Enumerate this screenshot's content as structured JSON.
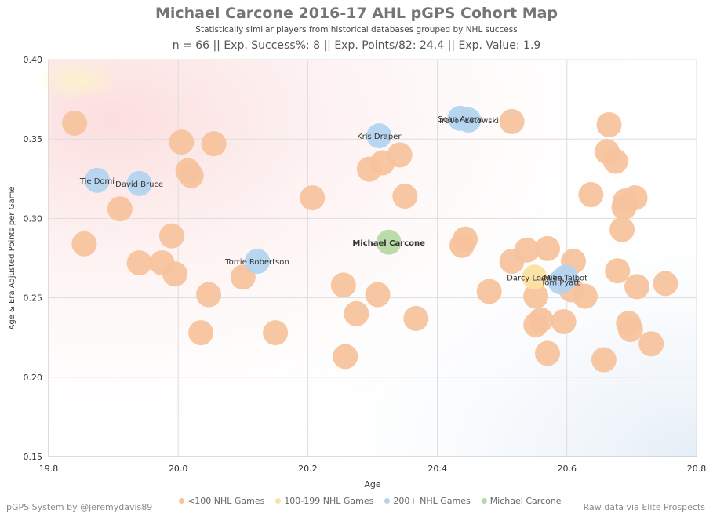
{
  "header": {
    "title": "Michael Carcone 2016-17 AHL pGPS Cohort Map",
    "subtitle": "Statistically similar players from historical databases grouped by NHL success",
    "stats_line": "n = 66 || Exp. Success%: 8 || Exp. Points/82: 24.4 || Exp. Value: 1.9"
  },
  "footer": {
    "left": "pGPS System by @jeremydavis89",
    "right": "Raw data via Elite Prospects"
  },
  "colors": {
    "lt100": "#F7C39E",
    "g100_199": "#FBE2A0",
    "g200": "#B3D4EE",
    "subject": "#B7D9A6",
    "grid": "#dddddd"
  },
  "legend": [
    {
      "label": "<100 NHL Games",
      "color": "#F7C39E"
    },
    {
      "label": "100-199 NHL Games",
      "color": "#FBE2A0"
    },
    {
      "label": "200+ NHL Games",
      "color": "#B3D4EE"
    },
    {
      "label": "Michael Carcone",
      "color": "#B7D9A6"
    }
  ],
  "chart_data": {
    "type": "scatter",
    "xlabel": "Age",
    "ylabel": "Age & Era Adjusted Points per Game",
    "xlim": [
      19.8,
      20.8
    ],
    "ylim": [
      0.15,
      0.4
    ],
    "xticks": [
      "19.8",
      "20.0",
      "20.2",
      "20.4",
      "20.6",
      "20.8"
    ],
    "yticks": [
      "0.15",
      "0.20",
      "0.25",
      "0.30",
      "0.35",
      "0.40"
    ],
    "grid": true,
    "series": [
      {
        "name": "<100 NHL Games",
        "points": [
          [
            19.84,
            0.36
          ],
          [
            19.855,
            0.284
          ],
          [
            19.91,
            0.306
          ],
          [
            19.94,
            0.272
          ],
          [
            19.975,
            0.272
          ],
          [
            19.99,
            0.289
          ],
          [
            19.995,
            0.265
          ],
          [
            20.005,
            0.348
          ],
          [
            20.015,
            0.33
          ],
          [
            20.02,
            0.327
          ],
          [
            20.035,
            0.228
          ],
          [
            20.047,
            0.252
          ],
          [
            20.055,
            0.347
          ],
          [
            20.1,
            0.263
          ],
          [
            20.15,
            0.228
          ],
          [
            20.207,
            0.313
          ],
          [
            20.255,
            0.258
          ],
          [
            20.258,
            0.213
          ],
          [
            20.275,
            0.24
          ],
          [
            20.295,
            0.331
          ],
          [
            20.308,
            0.252
          ],
          [
            20.315,
            0.335
          ],
          [
            20.342,
            0.34
          ],
          [
            20.35,
            0.314
          ],
          [
            20.367,
            0.237
          ],
          [
            20.438,
            0.283
          ],
          [
            20.443,
            0.287
          ],
          [
            20.48,
            0.254
          ],
          [
            20.515,
            0.361
          ],
          [
            20.515,
            0.273
          ],
          [
            20.538,
            0.28
          ],
          [
            20.552,
            0.251
          ],
          [
            20.552,
            0.233
          ],
          [
            20.56,
            0.236
          ],
          [
            20.57,
            0.281
          ],
          [
            20.57,
            0.215
          ],
          [
            20.595,
            0.235
          ],
          [
            20.607,
            0.255
          ],
          [
            20.61,
            0.273
          ],
          [
            20.628,
            0.251
          ],
          [
            20.637,
            0.315
          ],
          [
            20.657,
            0.211
          ],
          [
            20.662,
            0.342
          ],
          [
            20.665,
            0.359
          ],
          [
            20.675,
            0.336
          ],
          [
            20.678,
            0.267
          ],
          [
            20.685,
            0.293
          ],
          [
            20.688,
            0.307
          ],
          [
            20.69,
            0.311
          ],
          [
            20.695,
            0.234
          ],
          [
            20.698,
            0.23
          ],
          [
            20.705,
            0.313
          ],
          [
            20.708,
            0.257
          ],
          [
            20.73,
            0.221
          ],
          [
            20.752,
            0.259
          ]
        ]
      },
      {
        "name": "100-199 NHL Games",
        "points": [
          [
            20.55,
            0.263
          ]
        ]
      },
      {
        "name": "200+ NHL Games",
        "points": [
          [
            19.875,
            0.324
          ],
          [
            19.94,
            0.322
          ],
          [
            20.122,
            0.273
          ],
          [
            20.31,
            0.352
          ],
          [
            20.435,
            0.363
          ],
          [
            20.448,
            0.362
          ],
          [
            20.59,
            0.26
          ],
          [
            20.598,
            0.263
          ]
        ]
      },
      {
        "name": "Michael Carcone",
        "points": [
          [
            20.325,
            0.285
          ]
        ]
      }
    ],
    "annotations": [
      {
        "text": "Tie Domi",
        "x": 19.875,
        "y": 0.324,
        "bold": false
      },
      {
        "text": "David Bruce",
        "x": 19.94,
        "y": 0.322,
        "bold": false
      },
      {
        "text": "Torrie Robertson",
        "x": 20.122,
        "y": 0.273,
        "bold": false
      },
      {
        "text": "Kris Draper",
        "x": 20.31,
        "y": 0.352,
        "bold": false
      },
      {
        "text": "Sean Avery",
        "x": 20.435,
        "y": 0.363,
        "bold": false
      },
      {
        "text": "Trevor Letowski",
        "x": 20.448,
        "y": 0.362,
        "bold": false
      },
      {
        "text": "Darcy Loewen",
        "x": 20.55,
        "y": 0.263,
        "bold": false
      },
      {
        "text": "Mike Talbot",
        "x": 20.598,
        "y": 0.263,
        "bold": false
      },
      {
        "text": "Tom Pyatt",
        "x": 20.59,
        "y": 0.26,
        "bold": false
      },
      {
        "text": "Michael Carcone",
        "x": 20.325,
        "y": 0.285,
        "bold": true
      }
    ]
  }
}
